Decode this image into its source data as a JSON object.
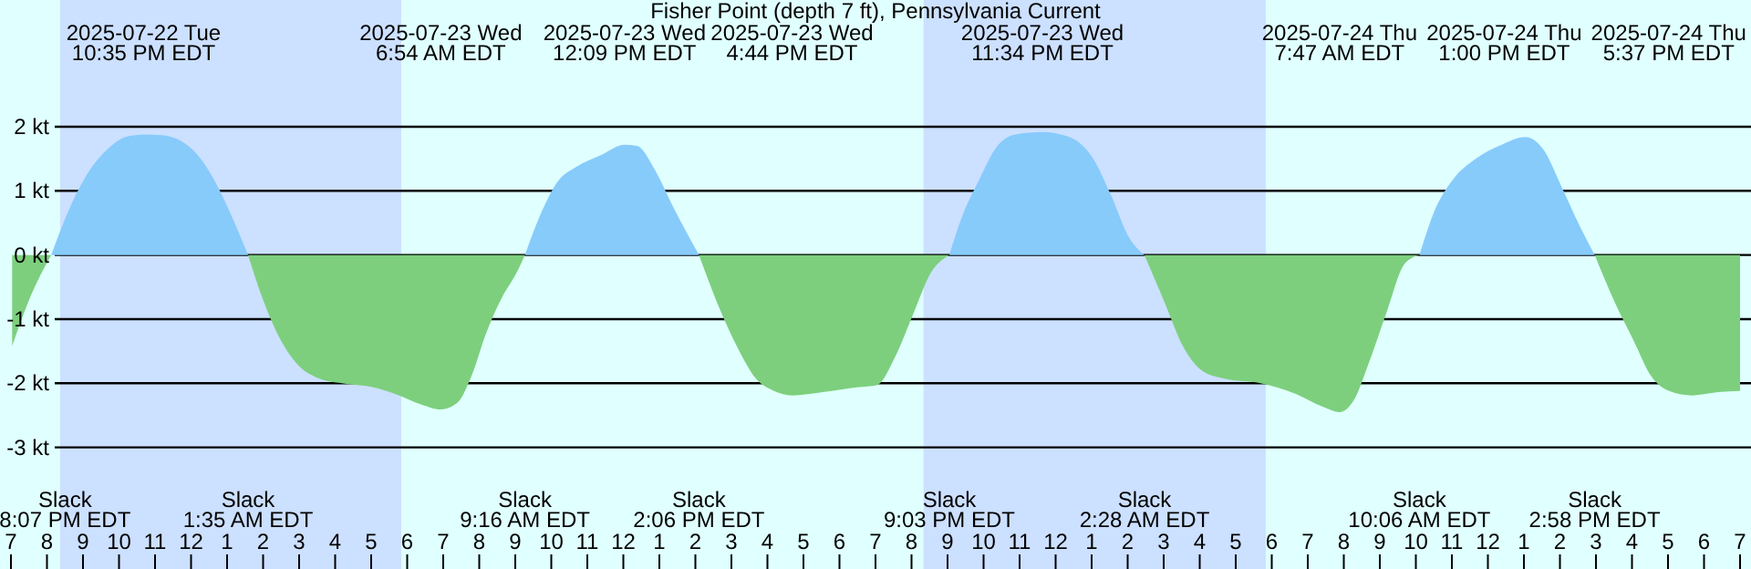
{
  "chart_data": {
    "type": "area",
    "title": "Fisher Point (depth 7 ft), Pennsylvania Current",
    "xlim": [
      "2025-07-22T19:00",
      "2025-07-24T19:00"
    ],
    "ylim": [
      -3,
      2
    ],
    "xticks": [
      {
        "value": "2025-07-22T19:00",
        "label": "7"
      },
      {
        "value": "2025-07-22T20:00",
        "label": "8"
      },
      {
        "value": "2025-07-22T21:00",
        "label": "9"
      },
      {
        "value": "2025-07-22T22:00",
        "label": "10"
      },
      {
        "value": "2025-07-22T23:00",
        "label": "11"
      },
      {
        "value": "2025-07-23T00:00",
        "label": "12"
      },
      {
        "value": "2025-07-23T01:00",
        "label": "1"
      },
      {
        "value": "2025-07-23T02:00",
        "label": "2"
      },
      {
        "value": "2025-07-23T03:00",
        "label": "3"
      },
      {
        "value": "2025-07-23T04:00",
        "label": "4"
      },
      {
        "value": "2025-07-23T05:00",
        "label": "5"
      },
      {
        "value": "2025-07-23T06:00",
        "label": "6"
      },
      {
        "value": "2025-07-23T07:00",
        "label": "7"
      },
      {
        "value": "2025-07-23T08:00",
        "label": "8"
      },
      {
        "value": "2025-07-23T09:00",
        "label": "9"
      },
      {
        "value": "2025-07-23T10:00",
        "label": "10"
      },
      {
        "value": "2025-07-23T11:00",
        "label": "11"
      },
      {
        "value": "2025-07-23T12:00",
        "label": "12"
      },
      {
        "value": "2025-07-23T13:00",
        "label": "1"
      },
      {
        "value": "2025-07-23T14:00",
        "label": "2"
      },
      {
        "value": "2025-07-23T15:00",
        "label": "3"
      },
      {
        "value": "2025-07-23T16:00",
        "label": "4"
      },
      {
        "value": "2025-07-23T17:00",
        "label": "5"
      },
      {
        "value": "2025-07-23T18:00",
        "label": "6"
      },
      {
        "value": "2025-07-23T19:00",
        "label": "7"
      },
      {
        "value": "2025-07-23T20:00",
        "label": "8"
      },
      {
        "value": "2025-07-23T21:00",
        "label": "9"
      },
      {
        "value": "2025-07-23T22:00",
        "label": "10"
      },
      {
        "value": "2025-07-23T23:00",
        "label": "11"
      },
      {
        "value": "2025-07-24T00:00",
        "label": "12"
      },
      {
        "value": "2025-07-24T01:00",
        "label": "1"
      },
      {
        "value": "2025-07-24T02:00",
        "label": "2"
      },
      {
        "value": "2025-07-24T03:00",
        "label": "3"
      },
      {
        "value": "2025-07-24T04:00",
        "label": "4"
      },
      {
        "value": "2025-07-24T05:00",
        "label": "5"
      },
      {
        "value": "2025-07-24T06:00",
        "label": "6"
      },
      {
        "value": "2025-07-24T07:00",
        "label": "7"
      },
      {
        "value": "2025-07-24T08:00",
        "label": "8"
      },
      {
        "value": "2025-07-24T09:00",
        "label": "9"
      },
      {
        "value": "2025-07-24T10:00",
        "label": "10"
      },
      {
        "value": "2025-07-24T11:00",
        "label": "11"
      },
      {
        "value": "2025-07-24T12:00",
        "label": "12"
      },
      {
        "value": "2025-07-24T13:00",
        "label": "1"
      },
      {
        "value": "2025-07-24T14:00",
        "label": "2"
      },
      {
        "value": "2025-07-24T15:00",
        "label": "3"
      },
      {
        "value": "2025-07-24T16:00",
        "label": "4"
      },
      {
        "value": "2025-07-24T17:00",
        "label": "5"
      },
      {
        "value": "2025-07-24T18:00",
        "label": "6"
      },
      {
        "value": "2025-07-24T19:00",
        "label": "7"
      }
    ],
    "yticks": [
      {
        "value": 2,
        "label": "2 kt"
      },
      {
        "value": 1,
        "label": "1 kt"
      },
      {
        "value": 0,
        "label": "0 kt"
      },
      {
        "value": -1,
        "label": "-1 kt"
      },
      {
        "value": -2,
        "label": "-2 kt"
      },
      {
        "value": -3,
        "label": "-3 kt"
      }
    ],
    "grid": "y",
    "bands": [
      {
        "axis": "x",
        "from": "2025-07-22T20:22",
        "to": "2025-07-23T05:50",
        "color": "#cce0ff"
      },
      {
        "axis": "x",
        "from": "2025-07-23T20:20",
        "to": "2025-07-24T05:50",
        "color": "#cce0ff"
      }
    ],
    "x": [
      "2025-07-22T19:02",
      "2025-07-22T19:32",
      "2025-07-22T20:07",
      "2025-07-22T20:41",
      "2025-07-22T21:11",
      "2025-07-22T21:41",
      "2025-07-22T22:11",
      "2025-07-22T22:41",
      "2025-07-22T23:11",
      "2025-07-22T23:41",
      "2025-07-23T00:11",
      "2025-07-23T00:41",
      "2025-07-23T01:05",
      "2025-07-23T01:35",
      "2025-07-23T02:02",
      "2025-07-23T02:32",
      "2025-07-23T03:02",
      "2025-07-23T03:32",
      "2025-07-23T04:11",
      "2025-07-23T05:02",
      "2025-07-23T05:41",
      "2025-07-23T06:23",
      "2025-07-23T06:56",
      "2025-07-23T07:23",
      "2025-07-23T07:47",
      "2025-07-23T08:11",
      "2025-07-23T08:38",
      "2025-07-23T09:02",
      "2025-07-23T09:16",
      "2025-07-23T09:41",
      "2025-07-23T10:11",
      "2025-07-23T10:41",
      "2025-07-23T11:23",
      "2025-07-23T12:02",
      "2025-07-23T12:23",
      "2025-07-23T12:53",
      "2025-07-23T13:23",
      "2025-07-23T14:06",
      "2025-07-23T14:41",
      "2025-07-23T15:11",
      "2025-07-23T15:41",
      "2025-07-23T16:11",
      "2025-07-23T16:41",
      "2025-07-23T17:32",
      "2025-07-23T18:32",
      "2025-07-23T19:02",
      "2025-07-23T19:32",
      "2025-07-23T20:02",
      "2025-07-23T20:32",
      "2025-07-23T21:03",
      "2025-07-23T21:23",
      "2025-07-23T21:53",
      "2025-07-23T22:23",
      "2025-07-23T22:53",
      "2025-07-23T23:38",
      "2025-07-24T00:23",
      "2025-07-24T01:02",
      "2025-07-24T01:32",
      "2025-07-24T02:02",
      "2025-07-24T02:28",
      "2025-07-24T03:02",
      "2025-07-24T03:32",
      "2025-07-24T04:02",
      "2025-07-24T04:41",
      "2025-07-24T05:41",
      "2025-07-24T06:41",
      "2025-07-24T07:23",
      "2025-07-24T07:53",
      "2025-07-24T08:17",
      "2025-07-24T08:41",
      "2025-07-24T09:11",
      "2025-07-24T09:41",
      "2025-07-24T10:06",
      "2025-07-24T10:32",
      "2025-07-24T11:02",
      "2025-07-24T11:41",
      "2025-07-24T12:23",
      "2025-07-24T13:02",
      "2025-07-24T13:32",
      "2025-07-24T14:02",
      "2025-07-24T14:32",
      "2025-07-24T14:58",
      "2025-07-24T15:32",
      "2025-07-24T16:02",
      "2025-07-24T16:32",
      "2025-07-24T17:02",
      "2025-07-24T17:41",
      "2025-07-24T18:23",
      "2025-07-24T19:00"
    ],
    "series": [
      {
        "color": "#87cbfb",
        "values": [
          null,
          null,
          0,
          0.8,
          1.32,
          1.65,
          1.84,
          1.88,
          1.87,
          1.79,
          1.56,
          1.13,
          0.66,
          0,
          null,
          null,
          null,
          null,
          null,
          null,
          null,
          null,
          null,
          null,
          null,
          null,
          null,
          null,
          0,
          0.61,
          1.15,
          1.37,
          1.56,
          1.72,
          1.7,
          1.32,
          0.75,
          0,
          null,
          null,
          null,
          null,
          null,
          null,
          null,
          null,
          null,
          null,
          null,
          0,
          0.57,
          1.18,
          1.7,
          1.88,
          1.92,
          1.84,
          1.51,
          0.94,
          0.28,
          0,
          null,
          null,
          null,
          null,
          null,
          null,
          null,
          null,
          null,
          null,
          null,
          null,
          0,
          0.71,
          1.18,
          1.51,
          1.72,
          1.84,
          1.65,
          1.08,
          0.47,
          0,
          null,
          null,
          null,
          null,
          null,
          null,
          null
        ]
      },
      {
        "color": "#7dcf7d",
        "values": [
          -1.42,
          -0.66,
          0,
          null,
          null,
          null,
          null,
          null,
          null,
          null,
          null,
          null,
          null,
          0,
          -0.75,
          -1.37,
          -1.75,
          -1.92,
          -2.0,
          -2.06,
          -2.17,
          -2.33,
          -2.41,
          -2.31,
          -1.89,
          -1.23,
          -0.66,
          -0.28,
          0,
          null,
          null,
          null,
          null,
          null,
          null,
          null,
          null,
          0,
          -0.85,
          -1.46,
          -1.93,
          -2.12,
          -2.19,
          -2.14,
          -2.06,
          -2.03,
          -1.6,
          -0.94,
          -0.28,
          0,
          null,
          null,
          null,
          null,
          null,
          null,
          null,
          null,
          null,
          0,
          -0.75,
          -1.42,
          -1.79,
          -1.93,
          -2.0,
          -2.17,
          -2.36,
          -2.45,
          -2.26,
          -1.7,
          -0.9,
          -0.14,
          0,
          null,
          null,
          null,
          null,
          null,
          null,
          null,
          null,
          0,
          -0.75,
          -1.32,
          -1.89,
          -2.12,
          -2.19,
          -2.14,
          -2.12
        ]
      }
    ],
    "annotations": [
      "2025-07-22 Tue\n10:35 PM EDT",
      "2025-07-23 Wed\n6:54 AM EDT",
      "2025-07-23 Wed\n12:09 PM EDT",
      "2025-07-23 Wed\n4:44 PM EDT",
      "2025-07-23 Wed\n11:34 PM EDT",
      "2025-07-24 Thu\n7:47 AM EDT",
      "2025-07-24 Thu\n1:00 PM EDT",
      "2025-07-24 Thu\n5:37 PM EDT",
      "Slack\n8:07 PM EDT",
      "Slack\n1:35 AM EDT",
      "Slack\n9:16 AM EDT",
      "Slack\n2:06 PM EDT",
      "Slack\n9:03 PM EDT",
      "Slack\n2:28 AM EDT",
      "Slack\n10:06 AM EDT",
      "Slack\n2:58 PM EDT"
    ]
  }
}
